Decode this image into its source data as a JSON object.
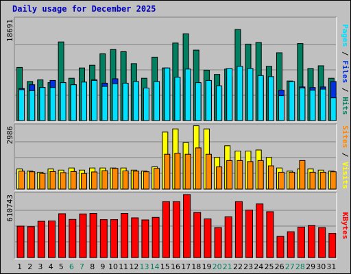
{
  "title": "Daily usage for December 2025",
  "colors": {
    "hits": "#008060",
    "files": "#0030e0",
    "pages": "#00e0ff",
    "visits": "#ffff00",
    "sites": "#ff8800",
    "kbytes": "#ff0000",
    "weekend": "#008060",
    "weekday": "#000000"
  },
  "chart_data": [
    {
      "type": "bar",
      "name": "hits-files-pages",
      "ymax_label": "18691",
      "ylim": [
        0,
        18691
      ],
      "legend": [
        "Pages",
        "Files",
        "Hits"
      ],
      "categories": [
        "1",
        "2",
        "3",
        "4",
        "5",
        "6",
        "7",
        "8",
        "9",
        "10",
        "11",
        "12",
        "13",
        "14",
        "15",
        "16",
        "17",
        "18",
        "19",
        "20",
        "21",
        "22",
        "23",
        "24",
        "25",
        "26",
        "27",
        "28",
        "29",
        "30",
        "31"
      ],
      "series": [
        {
          "name": "Hits",
          "values": [
            9800,
            7200,
            7500,
            7000,
            14500,
            7800,
            9700,
            10200,
            12300,
            13100,
            12700,
            10500,
            7800,
            11700,
            9700,
            14300,
            16000,
            13000,
            9300,
            8500,
            9500,
            16800,
            14100,
            14400,
            10000,
            12500,
            7300,
            14200,
            9600,
            10100,
            7800
          ]
        },
        {
          "name": "Files",
          "values": [
            5900,
            6600,
            6100,
            7400,
            7000,
            6600,
            6800,
            7500,
            6900,
            7700,
            6300,
            6500,
            5500,
            6400,
            8600,
            6700,
            8100,
            6800,
            6100,
            6000,
            8100,
            8400,
            9200,
            7900,
            7500,
            5600,
            6600,
            6200,
            6100,
            6200,
            7200
          ]
        },
        {
          "name": "Pages",
          "values": [
            5700,
            5500,
            6100,
            6100,
            7000,
            6600,
            7100,
            7400,
            6300,
            6800,
            6900,
            7200,
            6000,
            7200,
            9700,
            8000,
            9500,
            7000,
            7400,
            6400,
            9600,
            10000,
            9600,
            8300,
            8100,
            4600,
            7200,
            6000,
            5600,
            5800,
            4200
          ]
        }
      ]
    },
    {
      "type": "bar",
      "name": "visits-sites",
      "ymax_label": "2986",
      "ylim": [
        0,
        2986
      ],
      "legend": [
        "Sites",
        "Visits"
      ],
      "categories": [
        "1",
        "2",
        "3",
        "4",
        "5",
        "6",
        "7",
        "8",
        "9",
        "10",
        "11",
        "12",
        "13",
        "14",
        "15",
        "16",
        "17",
        "18",
        "19",
        "20",
        "21",
        "22",
        "23",
        "24",
        "25",
        "26",
        "27",
        "28",
        "29",
        "30",
        "31"
      ],
      "series": [
        {
          "name": "Visits",
          "values": [
            950,
            850,
            800,
            950,
            900,
            1000,
            900,
            1000,
            1000,
            1000,
            1000,
            900,
            850,
            1050,
            2700,
            2850,
            2200,
            3000,
            2850,
            1500,
            2050,
            1800,
            1800,
            1850,
            1500,
            1000,
            850,
            950,
            950,
            900,
            850
          ]
        },
        {
          "name": "Sites",
          "values": [
            850,
            820,
            740,
            830,
            780,
            830,
            740,
            810,
            870,
            980,
            860,
            850,
            820,
            980,
            1650,
            1700,
            1650,
            1950,
            1650,
            1050,
            1350,
            1350,
            1300,
            1350,
            1100,
            800,
            800,
            1350,
            800,
            800,
            820
          ]
        }
      ]
    },
    {
      "type": "bar",
      "name": "kbytes",
      "ymax_label": "610743",
      "ylim": [
        0,
        610743
      ],
      "legend": [
        "KBytes"
      ],
      "categories": [
        "1",
        "2",
        "3",
        "4",
        "5",
        "6",
        "7",
        "8",
        "9",
        "10",
        "11",
        "12",
        "13",
        "14",
        "15",
        "16",
        "17",
        "18",
        "19",
        "20",
        "21",
        "22",
        "23",
        "24",
        "25",
        "26",
        "27",
        "28",
        "29",
        "30",
        "31"
      ],
      "series": [
        {
          "name": "KBytes",
          "values": [
            305000,
            300000,
            352000,
            355000,
            425000,
            370000,
            423000,
            428000,
            368000,
            368000,
            428000,
            385000,
            365000,
            390000,
            542000,
            542000,
            610743,
            437000,
            375000,
            290000,
            395000,
            542000,
            460000,
            520000,
            445000,
            205000,
            250000,
            295000,
            310000,
            290000,
            235000
          ]
        }
      ]
    }
  ],
  "weekend_days": [
    6,
    7,
    13,
    14,
    20,
    21,
    27,
    28
  ]
}
